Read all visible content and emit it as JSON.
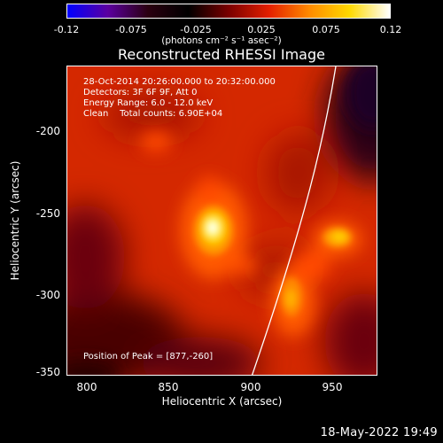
{
  "colorbar": {
    "ticks": [
      "-0.12",
      "-0.075",
      "-0.025",
      "0.025",
      "0.075",
      "0.12"
    ],
    "units": "(photons cm⁻² s⁻¹ asec⁻²)",
    "colors": [
      "#0000ff",
      "#5b00a0",
      "#2a0010",
      "#000000",
      "#7a0000",
      "#e31f00",
      "#ff8a00",
      "#ffd900",
      "#ffffff"
    ]
  },
  "title": "Reconstructed RHESSI Image",
  "info": {
    "line1": "28-Oct-2014 20:26:00.000 to 20:32:00.000",
    "line2": "Detectors: 3F 6F 9F, Att 0",
    "line3": "Energy Range: 6.0 - 12.0 keV",
    "line4": "Clean    Total counts: 6.90E+04",
    "peak": "Position of Peak = [877,-260]"
  },
  "axes": {
    "xlabel": "Heliocentric X (arcsec)",
    "ylabel": "Heliocentric Y (arcsec)",
    "xticks": [
      "800",
      "850",
      "900",
      "950"
    ],
    "yticks": [
      "-200",
      "-250",
      "-300",
      "-350"
    ]
  },
  "timestamp": "18-May-2022 19:49"
}
